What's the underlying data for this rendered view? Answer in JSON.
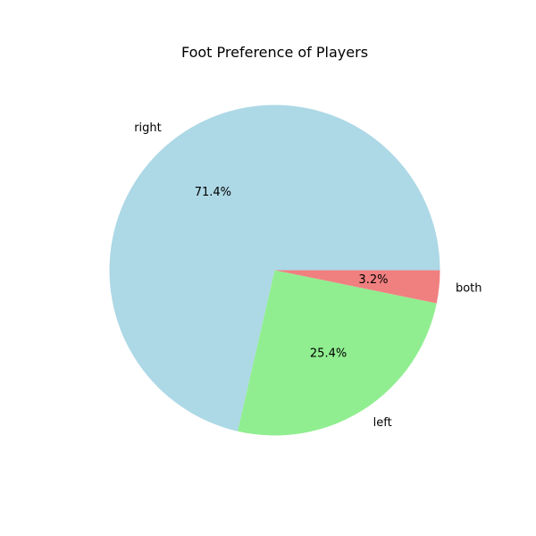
{
  "chart_data": {
    "type": "pie",
    "title": "Foot Preference of Players",
    "labels": [
      "right",
      "left",
      "both"
    ],
    "values": [
      71.4,
      25.4,
      3.2
    ],
    "percent_labels": [
      "71.4%",
      "25.4%",
      "3.2%"
    ],
    "colors": [
      "#add8e6",
      "#90ee90",
      "#f08080"
    ],
    "start_angle_deg": 0,
    "direction": "counterclockwise",
    "legend": "none"
  }
}
